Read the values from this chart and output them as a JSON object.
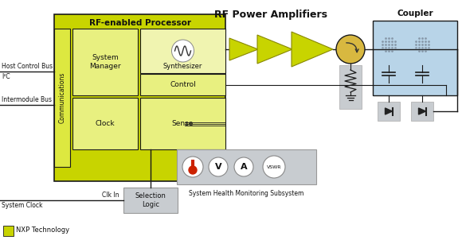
{
  "bg_color": "#ffffff",
  "nxp_yellow": "#c8d400",
  "nxp_yellow_light": "#dde840",
  "comm_yellow": "#e0e870",
  "inner_yellow": "#e8f080",
  "syn_yellow": "#f0f4b0",
  "gray_box": "#c8ccd0",
  "blue_box": "#b8d4e8",
  "line_color": "#1a1a1a",
  "title": "RF-enabled Processor",
  "rf_amp_title": "RF Power Amplifiers",
  "coupler_title": "Coupler",
  "health_title": "System Health Monitoring Subsystem",
  "nxp_label": "NXP Technology",
  "host_bus": "Host Control Bus",
  "host_bus2": "I²C",
  "intermod_bus": "Intermodule Bus",
  "clk_in": "Clk In",
  "sys_clock": "System Clock"
}
